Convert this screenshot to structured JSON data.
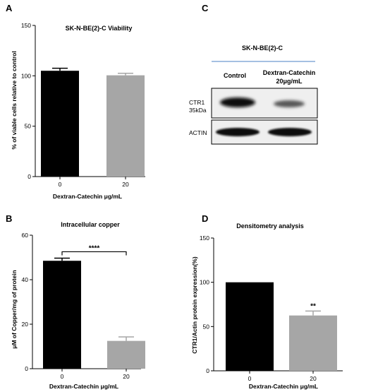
{
  "panels": {
    "A": "A",
    "B": "B",
    "C": "C",
    "D": "D"
  },
  "chart_data": [
    {
      "id": "A",
      "type": "bar",
      "title": "SK-N-BE(2)-C Viability",
      "xlabel": "Dextran-Catechin μg/mL",
      "ylabel": "% of viable cells relative to control",
      "categories": [
        "0",
        "20"
      ],
      "values": [
        105,
        100.5
      ],
      "errors": [
        2.5,
        2
      ],
      "ylim": [
        0,
        150
      ],
      "yticks": [
        "0",
        "50",
        "100",
        "150"
      ],
      "colors": [
        "#000000",
        "#a6a6a6"
      ],
      "significance": ""
    },
    {
      "id": "B",
      "type": "bar",
      "title": "Intracellular copper",
      "xlabel": "Dextran-Catechin μg/mL",
      "ylabel": "μM of Copper/mg of protein",
      "categories": [
        "0",
        "20"
      ],
      "values": [
        48.5,
        12.5
      ],
      "errors": [
        1.2,
        1.8
      ],
      "ylim": [
        0,
        60
      ],
      "yticks": [
        "0",
        "20",
        "40",
        "60"
      ],
      "colors": [
        "#000000",
        "#a6a6a6"
      ],
      "significance": "****"
    },
    {
      "id": "D",
      "type": "bar",
      "title": "Densitometry analysis",
      "xlabel": "Dextran-Catechin μg/mL",
      "ylabel": "CTR1/Actin protein expression(%)",
      "categories": [
        "0",
        "20"
      ],
      "values": [
        100,
        62.5
      ],
      "errors": [
        0,
        5
      ],
      "ylim": [
        0,
        150
      ],
      "yticks": [
        "0",
        "50",
        "100",
        "150"
      ],
      "colors": [
        "#000000",
        "#a6a6a6"
      ],
      "significance": "**"
    }
  ],
  "western_blot": {
    "cell_line": "SK-N-BE(2)-C",
    "lane_control": "Control",
    "lane_treated_line1": "Dextran-Catechin",
    "lane_treated_line2": "20μg/mL",
    "ctr1_line1": "CTR1",
    "ctr1_line2": "35kDa",
    "actin": "ACTIN",
    "accent_color": "#6f9bd1"
  }
}
